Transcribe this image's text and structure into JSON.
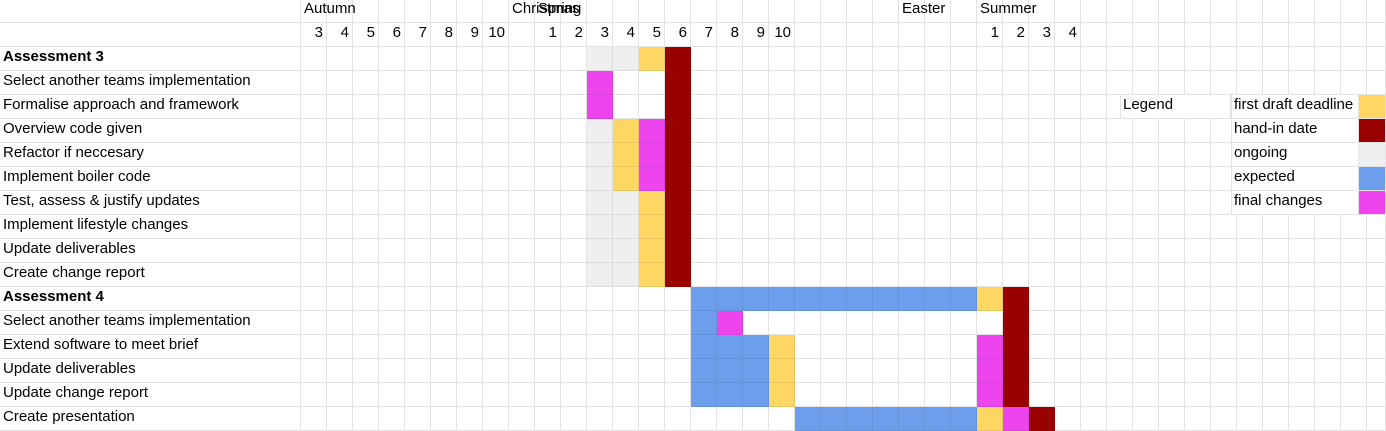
{
  "colors": {
    "first_draft": "#fdd663",
    "hand_in": "#990000",
    "ongoing": "#efefef",
    "expected": "#6d9eeb",
    "final": "#ee44ee"
  },
  "terms": [
    {
      "label": "Autumn",
      "col": 1
    },
    {
      "label": "Christmas",
      "col": 9
    },
    {
      "label": "Spring",
      "col": 10
    },
    {
      "label": "Easter",
      "col": 24
    },
    {
      "label": "Summer",
      "col": 27
    }
  ],
  "weeks": [
    {
      "label": "3",
      "col": 1
    },
    {
      "label": "4",
      "col": 2
    },
    {
      "label": "5",
      "col": 3
    },
    {
      "label": "6",
      "col": 4
    },
    {
      "label": "7",
      "col": 5
    },
    {
      "label": "8",
      "col": 6
    },
    {
      "label": "9",
      "col": 7
    },
    {
      "label": "10",
      "col": 8
    },
    {
      "label": "1",
      "col": 10
    },
    {
      "label": "2",
      "col": 11
    },
    {
      "label": "3",
      "col": 12
    },
    {
      "label": "4",
      "col": 13
    },
    {
      "label": "5",
      "col": 14
    },
    {
      "label": "6",
      "col": 15
    },
    {
      "label": "7",
      "col": 16
    },
    {
      "label": "8",
      "col": 17
    },
    {
      "label": "9",
      "col": 18
    },
    {
      "label": "10",
      "col": 19
    },
    {
      "label": "1",
      "col": 27
    },
    {
      "label": "2",
      "col": 28
    },
    {
      "label": "3",
      "col": 29
    },
    {
      "label": "4",
      "col": 30
    }
  ],
  "tasks": [
    {
      "label": "Assessment 3",
      "bold": true,
      "fills": [
        [
          12,
          "ongoing"
        ],
        [
          13,
          "ongoing"
        ],
        [
          14,
          "first_draft"
        ],
        [
          15,
          "hand_in"
        ]
      ]
    },
    {
      "label": "Select another teams implementation",
      "fills": [
        [
          12,
          "final"
        ],
        [
          15,
          "hand_in"
        ]
      ]
    },
    {
      "label": "Formalise approach and framework",
      "fills": [
        [
          12,
          "final"
        ],
        [
          15,
          "hand_in"
        ]
      ]
    },
    {
      "label": "Overview code given",
      "fills": [
        [
          12,
          "ongoing"
        ],
        [
          13,
          "first_draft"
        ],
        [
          14,
          "final"
        ],
        [
          15,
          "hand_in"
        ]
      ]
    },
    {
      "label": "Refactor if neccesary",
      "fills": [
        [
          12,
          "ongoing"
        ],
        [
          13,
          "first_draft"
        ],
        [
          14,
          "final"
        ],
        [
          15,
          "hand_in"
        ]
      ]
    },
    {
      "label": "Implement boiler code",
      "fills": [
        [
          12,
          "ongoing"
        ],
        [
          13,
          "first_draft"
        ],
        [
          14,
          "final"
        ],
        [
          15,
          "hand_in"
        ]
      ]
    },
    {
      "label": "Test, assess & justify updates",
      "fills": [
        [
          12,
          "ongoing"
        ],
        [
          13,
          "ongoing"
        ],
        [
          14,
          "first_draft"
        ],
        [
          15,
          "hand_in"
        ]
      ]
    },
    {
      "label": "Implement lifestyle changes",
      "fills": [
        [
          12,
          "ongoing"
        ],
        [
          13,
          "ongoing"
        ],
        [
          14,
          "first_draft"
        ],
        [
          15,
          "hand_in"
        ]
      ]
    },
    {
      "label": "Update deliverables",
      "fills": [
        [
          12,
          "ongoing"
        ],
        [
          13,
          "ongoing"
        ],
        [
          14,
          "first_draft"
        ],
        [
          15,
          "hand_in"
        ]
      ]
    },
    {
      "label": "Create change report",
      "fills": [
        [
          12,
          "ongoing"
        ],
        [
          13,
          "ongoing"
        ],
        [
          14,
          "first_draft"
        ],
        [
          15,
          "hand_in"
        ]
      ]
    },
    {
      "label": "Assessment 4",
      "bold": true,
      "fills": [
        [
          16,
          "expected"
        ],
        [
          17,
          "expected"
        ],
        [
          18,
          "expected"
        ],
        [
          19,
          "expected"
        ],
        [
          20,
          "expected"
        ],
        [
          21,
          "expected"
        ],
        [
          22,
          "expected"
        ],
        [
          23,
          "expected"
        ],
        [
          24,
          "expected"
        ],
        [
          25,
          "expected"
        ],
        [
          26,
          "expected"
        ],
        [
          27,
          "first_draft"
        ],
        [
          28,
          "hand_in"
        ]
      ]
    },
    {
      "label": "Select another teams implementation",
      "fills": [
        [
          16,
          "expected"
        ],
        [
          17,
          "final"
        ],
        [
          28,
          "hand_in"
        ]
      ]
    },
    {
      "label": "Extend software to meet brief",
      "fills": [
        [
          16,
          "expected"
        ],
        [
          17,
          "expected"
        ],
        [
          18,
          "expected"
        ],
        [
          19,
          "first_draft"
        ],
        [
          27,
          "final"
        ],
        [
          28,
          "hand_in"
        ]
      ]
    },
    {
      "label": "Update deliverables",
      "fills": [
        [
          16,
          "expected"
        ],
        [
          17,
          "expected"
        ],
        [
          18,
          "expected"
        ],
        [
          19,
          "first_draft"
        ],
        [
          27,
          "final"
        ],
        [
          28,
          "hand_in"
        ]
      ]
    },
    {
      "label": "Update change report",
      "fills": [
        [
          16,
          "expected"
        ],
        [
          17,
          "expected"
        ],
        [
          18,
          "expected"
        ],
        [
          19,
          "first_draft"
        ],
        [
          27,
          "final"
        ],
        [
          28,
          "hand_in"
        ]
      ]
    },
    {
      "label": "Create presentation",
      "fills": [
        [
          20,
          "expected"
        ],
        [
          21,
          "expected"
        ],
        [
          22,
          "expected"
        ],
        [
          23,
          "expected"
        ],
        [
          24,
          "expected"
        ],
        [
          25,
          "expected"
        ],
        [
          26,
          "expected"
        ],
        [
          27,
          "first_draft"
        ],
        [
          28,
          "final"
        ],
        [
          29,
          "hand_in"
        ]
      ]
    }
  ],
  "legend": {
    "title": "Legend",
    "items": [
      {
        "label": "first draft deadline",
        "color": "first_draft"
      },
      {
        "label": "hand-in date",
        "color": "hand_in"
      },
      {
        "label": "ongoing",
        "color": "ongoing"
      },
      {
        "label": "expected",
        "color": "expected"
      },
      {
        "label": "final changes",
        "color": "final"
      }
    ]
  }
}
